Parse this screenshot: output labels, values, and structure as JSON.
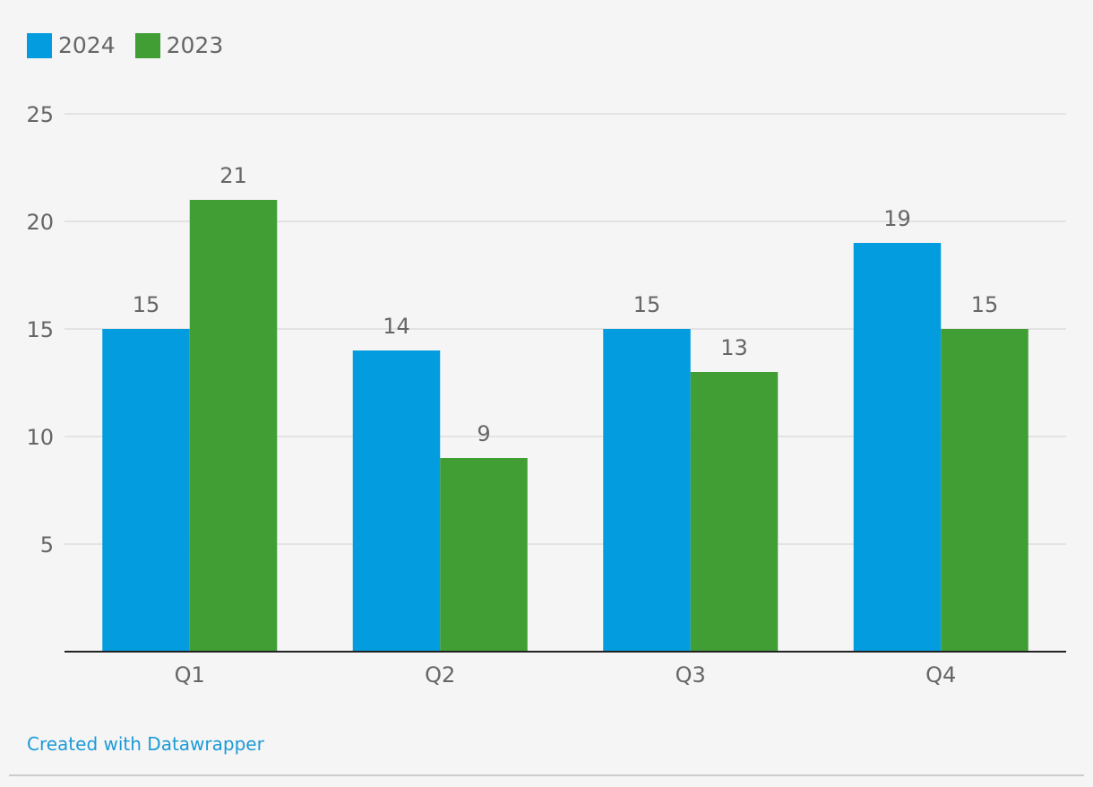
{
  "colors": {
    "background": "#f5f5f5",
    "series_2024": "#039ddf",
    "series_2023": "#409e35",
    "gridline": "#dddddd",
    "axis": "#222222",
    "text": "#666666",
    "credit": "#1d9ad6"
  },
  "legend": {
    "items": [
      {
        "label": "2024",
        "color": "#039ddf"
      },
      {
        "label": "2023",
        "color": "#409e35"
      }
    ]
  },
  "chart_data": {
    "type": "bar",
    "title": "",
    "xlabel": "",
    "ylabel": "",
    "categories": [
      "Q1",
      "Q2",
      "Q3",
      "Q4"
    ],
    "series": [
      {
        "name": "2024",
        "color": "#039ddf",
        "values": [
          15,
          14,
          15,
          19
        ]
      },
      {
        "name": "2023",
        "color": "#409e35",
        "values": [
          21,
          9,
          13,
          15
        ]
      }
    ],
    "ylim": [
      0,
      25
    ],
    "yticks": [
      5,
      10,
      15,
      20,
      25
    ],
    "grid": true,
    "legend_position": "top-left",
    "show_value_labels": true
  },
  "footer": {
    "credit": "Created with Datawrapper"
  }
}
